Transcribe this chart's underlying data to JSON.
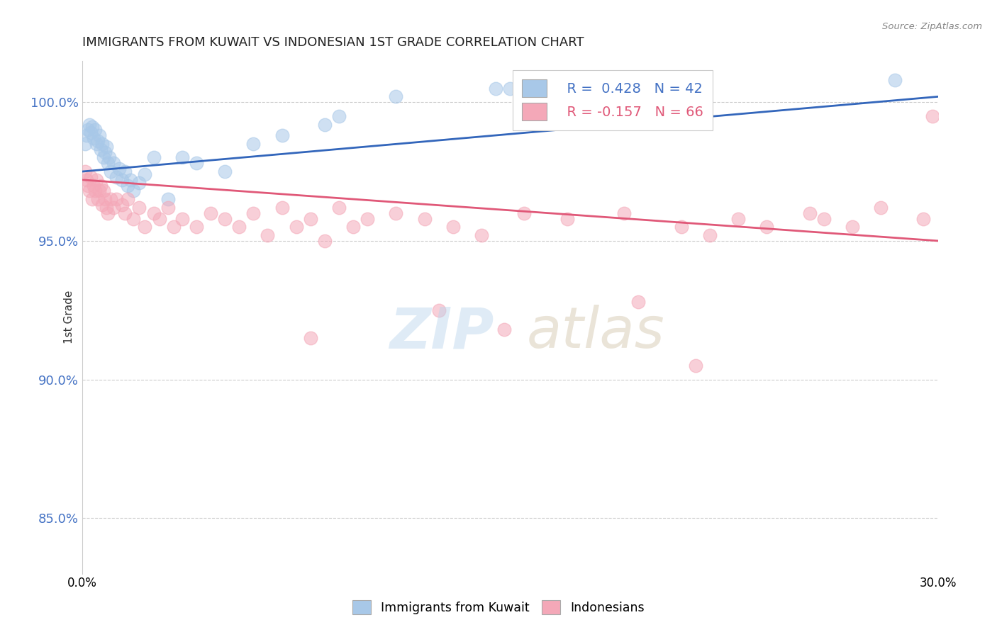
{
  "title": "IMMIGRANTS FROM KUWAIT VS INDONESIAN 1ST GRADE CORRELATION CHART",
  "source": "Source: ZipAtlas.com",
  "ylabel": "1st Grade",
  "x_min": 0.0,
  "x_max": 30.0,
  "y_min": 83.0,
  "y_max": 101.5,
  "yticks": [
    85.0,
    90.0,
    95.0,
    100.0
  ],
  "legend_r1": "R =  0.428",
  "legend_n1": "N = 42",
  "legend_r2": "R = -0.157",
  "legend_n2": "N = 66",
  "blue_color": "#a8c8e8",
  "pink_color": "#f4a8b8",
  "blue_line_color": "#3366bb",
  "pink_line_color": "#e05878",
  "blue_trend_x0": 0.0,
  "blue_trend_y0": 97.5,
  "blue_trend_x1": 30.0,
  "blue_trend_y1": 100.2,
  "pink_trend_x0": 0.0,
  "pink_trend_y0": 97.2,
  "pink_trend_x1": 30.0,
  "pink_trend_y1": 95.0,
  "blue_points_x": [
    0.1,
    0.15,
    0.2,
    0.25,
    0.3,
    0.35,
    0.4,
    0.45,
    0.5,
    0.55,
    0.6,
    0.65,
    0.7,
    0.75,
    0.8,
    0.85,
    0.9,
    0.95,
    1.0,
    1.1,
    1.2,
    1.3,
    1.4,
    1.5,
    1.6,
    1.7,
    1.8,
    2.0,
    2.2,
    2.5,
    3.0,
    3.5,
    4.0,
    5.0,
    6.0,
    7.0,
    8.5,
    9.0,
    11.0,
    14.5,
    15.0,
    28.5
  ],
  "blue_points_y": [
    98.5,
    98.8,
    99.0,
    99.2,
    98.9,
    99.1,
    98.7,
    99.0,
    98.5,
    98.6,
    98.8,
    98.3,
    98.5,
    98.0,
    98.2,
    98.4,
    97.8,
    98.0,
    97.5,
    97.8,
    97.3,
    97.6,
    97.2,
    97.5,
    97.0,
    97.2,
    96.8,
    97.1,
    97.4,
    98.0,
    96.5,
    98.0,
    97.8,
    97.5,
    98.5,
    98.8,
    99.2,
    99.5,
    100.2,
    100.5,
    100.5,
    100.8
  ],
  "pink_points_x": [
    0.1,
    0.15,
    0.2,
    0.25,
    0.3,
    0.35,
    0.4,
    0.45,
    0.5,
    0.55,
    0.6,
    0.65,
    0.7,
    0.75,
    0.8,
    0.85,
    0.9,
    1.0,
    1.1,
    1.2,
    1.4,
    1.5,
    1.6,
    1.8,
    2.0,
    2.2,
    2.5,
    2.7,
    3.0,
    3.2,
    3.5,
    4.0,
    4.5,
    5.0,
    5.5,
    6.0,
    6.5,
    7.0,
    7.5,
    8.0,
    8.5,
    9.0,
    9.5,
    10.0,
    11.0,
    12.0,
    13.0,
    14.0,
    15.5,
    17.0,
    19.0,
    21.0,
    22.0,
    23.0,
    24.0,
    25.5,
    26.0,
    27.0,
    28.0,
    29.5,
    29.8,
    19.5,
    14.8,
    12.5,
    8.0,
    21.5
  ],
  "pink_points_y": [
    97.5,
    97.2,
    97.0,
    96.8,
    97.3,
    96.5,
    97.0,
    96.8,
    97.2,
    96.5,
    96.8,
    97.0,
    96.3,
    96.8,
    96.5,
    96.2,
    96.0,
    96.5,
    96.2,
    96.5,
    96.3,
    96.0,
    96.5,
    95.8,
    96.2,
    95.5,
    96.0,
    95.8,
    96.2,
    95.5,
    95.8,
    95.5,
    96.0,
    95.8,
    95.5,
    96.0,
    95.2,
    96.2,
    95.5,
    95.8,
    95.0,
    96.2,
    95.5,
    95.8,
    96.0,
    95.8,
    95.5,
    95.2,
    96.0,
    95.8,
    96.0,
    95.5,
    95.2,
    95.8,
    95.5,
    96.0,
    95.8,
    95.5,
    96.2,
    95.8,
    99.5,
    92.8,
    91.8,
    92.5,
    91.5,
    90.5
  ],
  "legend_label_blue": "Immigrants from Kuwait",
  "legend_label_pink": "Indonesians"
}
